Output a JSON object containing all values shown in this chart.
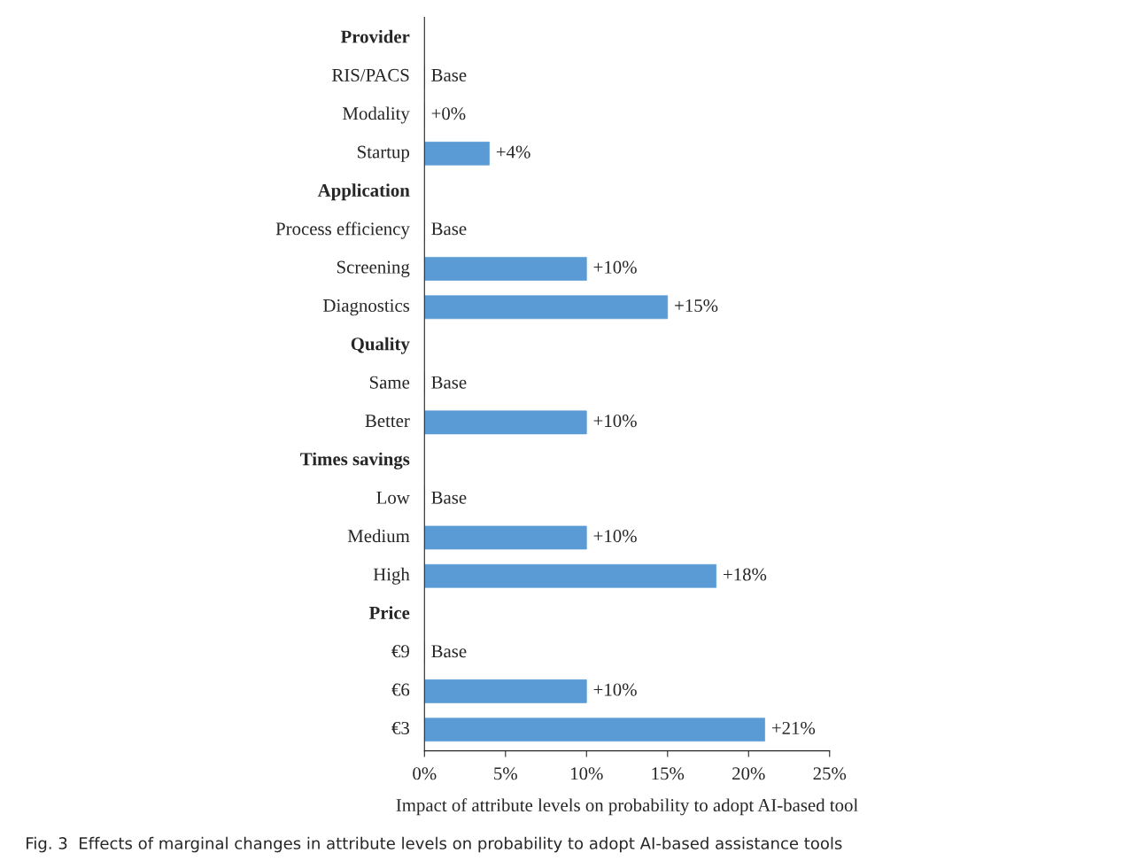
{
  "chart_data": {
    "type": "bar",
    "orientation": "horizontal",
    "categories": [
      "Provider",
      "RIS/PACS",
      "Modality",
      "Startup",
      "Application",
      "Process efficiency",
      "Screening",
      "Diagnostics",
      "Quality",
      "Same",
      "Better",
      "Times savings",
      "Low",
      "Medium",
      "High",
      "Price",
      "€9",
      "€6",
      "€3"
    ],
    "values": [
      null,
      0,
      0,
      4,
      null,
      0,
      10,
      15,
      null,
      0,
      10,
      null,
      0,
      10,
      18,
      null,
      0,
      10,
      21
    ],
    "value_labels": [
      null,
      "Base",
      "+0%",
      "+4%",
      null,
      "Base",
      "+10%",
      "+15%",
      null,
      "Base",
      "+10%",
      null,
      "Base",
      "+10%",
      "+18%",
      null,
      "Base",
      "+10%",
      "+21%"
    ],
    "color": "#5b9bd5",
    "xlim": [
      0,
      25
    ],
    "xticks": [
      {
        "value": 0,
        "label": "0%"
      },
      {
        "value": 5,
        "label": "5%"
      },
      {
        "value": 10,
        "label": "10%"
      },
      {
        "value": 15,
        "label": "15%"
      },
      {
        "value": 20,
        "label": "20%"
      },
      {
        "value": 25,
        "label": "25%"
      }
    ],
    "xlabel": "Impact of attribute levels on probability to adopt AI-based tool",
    "tick_labels": "x",
    "annotations": [
      "Fig. 3  Effects of marginal changes in attribute levels on probability to adopt AI-based assistance tools"
    ]
  }
}
